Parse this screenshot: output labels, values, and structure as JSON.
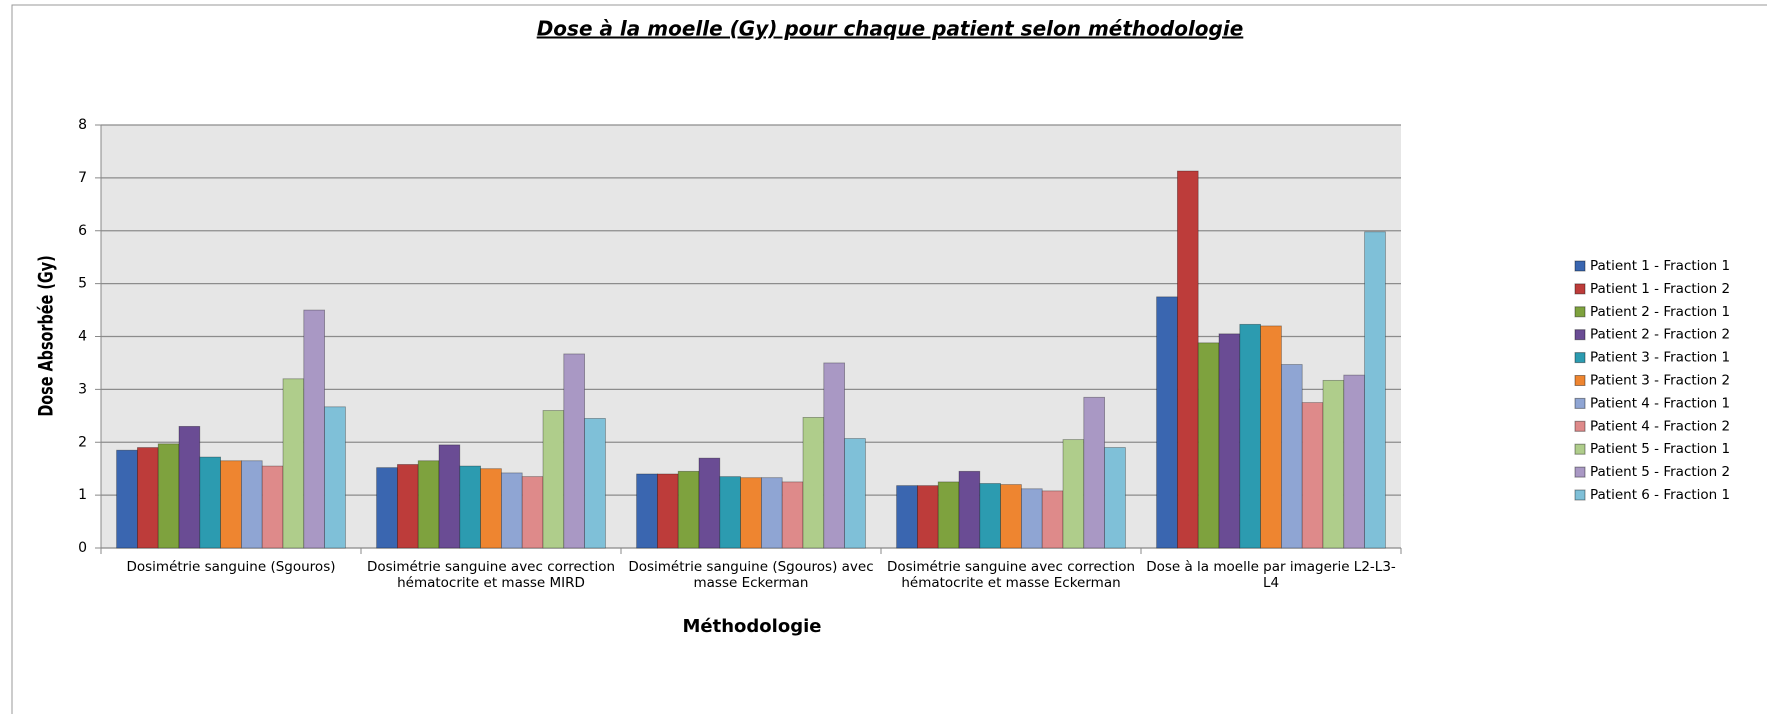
{
  "chart_data": {
    "type": "bar",
    "title": "Dose à la moelle (Gy) pour chaque patient selon méthodologie",
    "x_label": "Méthodologie",
    "y_label": "Dose Absorbée (Gy)",
    "categories": [
      "Dosimétrie sanguine (Sgouros)",
      "Dosimétrie sanguine avec correction hématocrite et masse MIRD",
      "Dosimétrie sanguine (Sgouros) avec masse Eckerman",
      "Dosimétrie sanguine avec correction hématocrite et masse Eckerman",
      "Dose à la moelle par imagerie L2-L3-L4"
    ],
    "series": [
      {
        "name": "Patient 1 - Fraction 1",
        "color": "#3a66b0",
        "values": [
          1.85,
          1.52,
          1.4,
          1.18,
          4.75
        ]
      },
      {
        "name": "Patient 1 - Fraction 2",
        "color": "#bd3c3a",
        "values": [
          1.9,
          1.58,
          1.4,
          1.18,
          7.13
        ]
      },
      {
        "name": "Patient 2 - Fraction 1",
        "color": "#7ea23e",
        "values": [
          1.97,
          1.65,
          1.45,
          1.25,
          3.88
        ]
      },
      {
        "name": "Patient 2 - Fraction 2",
        "color": "#6a4c94",
        "values": [
          2.3,
          1.95,
          1.7,
          1.45,
          4.05
        ]
      },
      {
        "name": "Patient 3 - Fraction 1",
        "color": "#2c9bb0",
        "values": [
          1.72,
          1.55,
          1.35,
          1.22,
          4.23
        ]
      },
      {
        "name": "Patient 3 - Fraction 2",
        "color": "#ee8530",
        "values": [
          1.65,
          1.5,
          1.33,
          1.2,
          4.2
        ]
      },
      {
        "name": "Patient 4 - Fraction 1",
        "color": "#8fa5d3",
        "values": [
          1.65,
          1.42,
          1.33,
          1.12,
          3.47
        ]
      },
      {
        "name": "Patient 4 - Fraction 2",
        "color": "#de8a8a",
        "values": [
          1.55,
          1.35,
          1.25,
          1.08,
          2.75
        ]
      },
      {
        "name": "Patient 5 - Fraction 1",
        "color": "#afcd8b",
        "values": [
          3.2,
          2.6,
          2.47,
          2.05,
          3.17
        ]
      },
      {
        "name": "Patient 5 - Fraction 2",
        "color": "#a998c4",
        "values": [
          4.5,
          3.67,
          3.5,
          2.85,
          3.27
        ]
      },
      {
        "name": "Patient 6 - Fraction 1",
        "color": "#7fc0d8",
        "values": [
          2.67,
          2.45,
          2.07,
          1.9,
          5.98
        ]
      }
    ],
    "ylim": [
      0,
      8
    ],
    "yticks": [
      0,
      1,
      2,
      3,
      4,
      5,
      6,
      7,
      8
    ],
    "grid": true,
    "legend": "right"
  }
}
